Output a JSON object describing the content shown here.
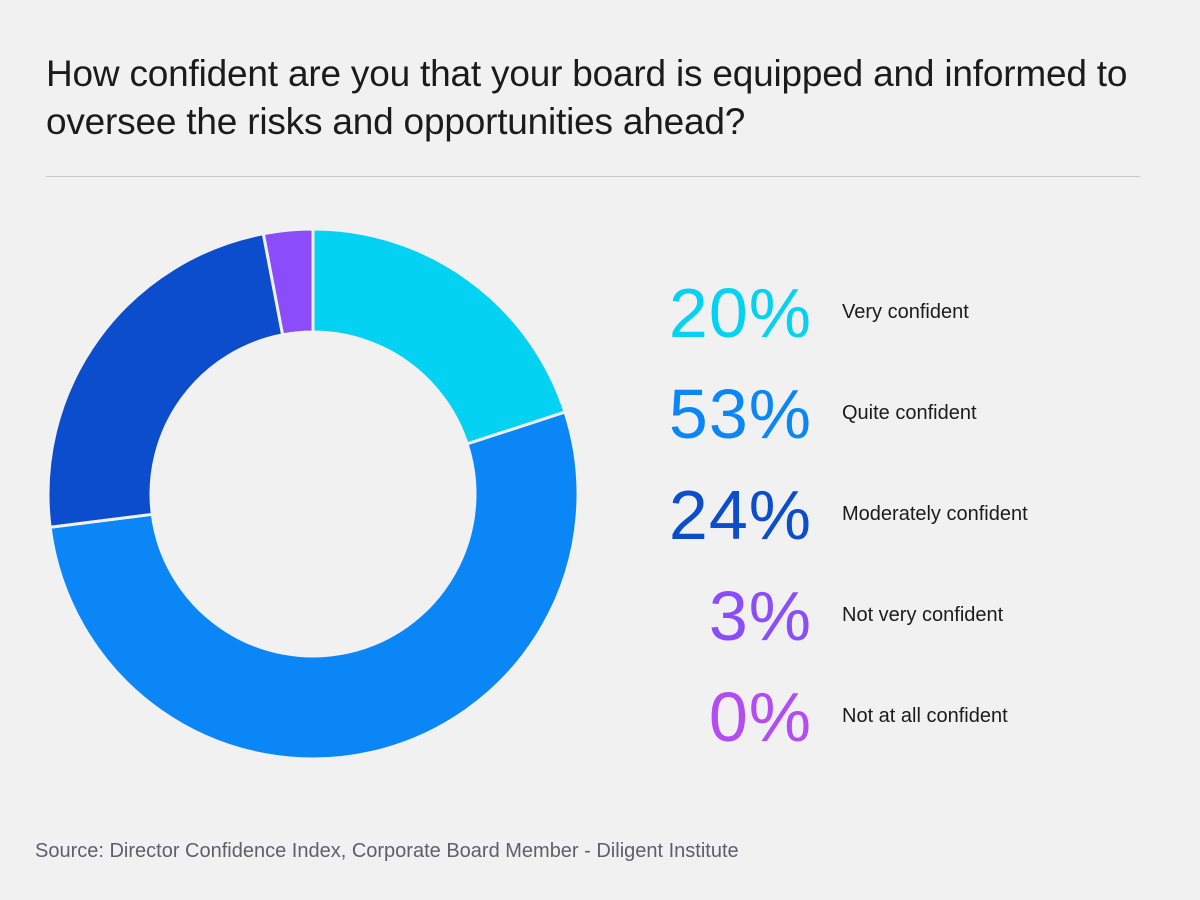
{
  "chart_data": {
    "type": "donut",
    "title": "How confident are you that your board is equipped and informed to oversee the risks and opportunities ahead?",
    "source": "Source: Director Confidence Index, Corporate Board Member - Diligent Institute",
    "categories": [
      "Very confident",
      "Quite confident",
      "Moderately confident",
      "Not very confident",
      "Not at all confident"
    ],
    "values": [
      20,
      53,
      24,
      3,
      0
    ],
    "labels": [
      "20%",
      "53%",
      "24%",
      "3%",
      "0%"
    ],
    "colors": [
      "#04d2f2",
      "#0a86f7",
      "#0b4dcc",
      "#8b4dfa",
      "#b44cf4"
    ],
    "legend_position": "right",
    "start_angle": "top",
    "direction": "clockwise"
  }
}
